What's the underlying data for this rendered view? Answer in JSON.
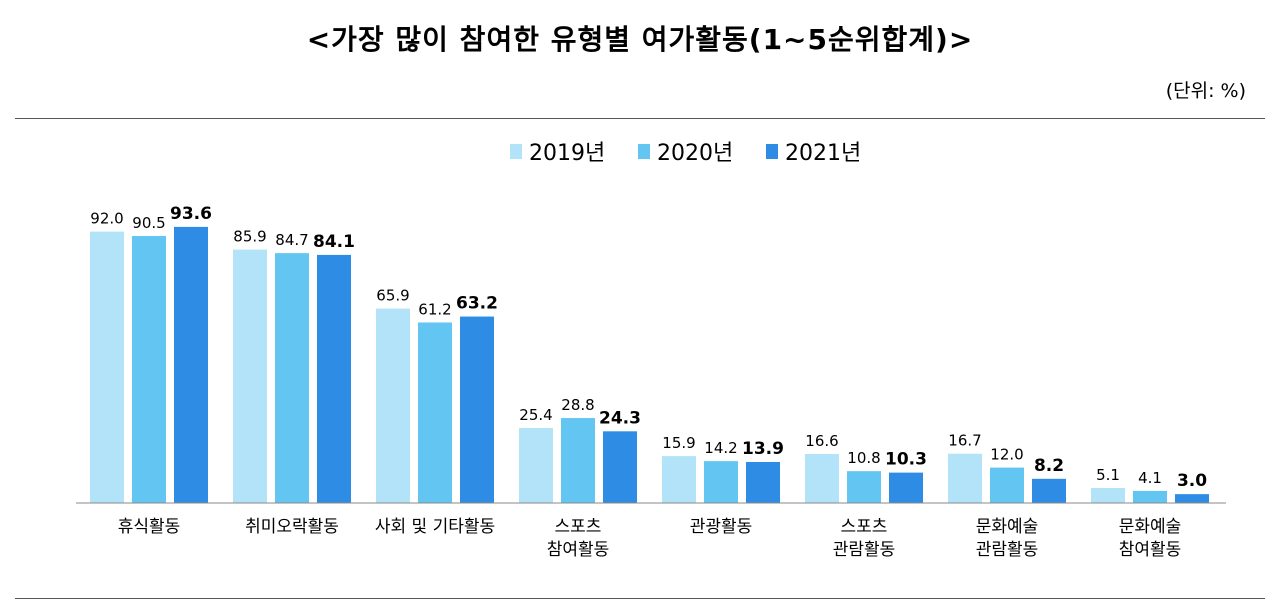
{
  "chart_data": {
    "type": "bar",
    "title": "<가장 많이 참여한 유형별 여가활동(1~5순위합계)>",
    "unit_label": "(단위:  %)",
    "categories": [
      "휴식활동",
      "취미오락활동",
      "사회 및 기타활동",
      "스포츠\n참여활동",
      "관광활동",
      "스포츠\n관람활동",
      "문화예술\n관람활동",
      "문화예술\n참여활동"
    ],
    "series": [
      {
        "name": "2019년",
        "color": "#b3e3f8",
        "values": [
          92.0,
          85.9,
          65.9,
          25.4,
          15.9,
          16.6,
          16.7,
          5.1
        ]
      },
      {
        "name": "2020년",
        "color": "#63c6f2",
        "values": [
          90.5,
          84.7,
          61.2,
          28.8,
          14.2,
          10.8,
          12.0,
          4.1
        ]
      },
      {
        "name": "2021년",
        "color": "#2f8ce4",
        "values": [
          93.6,
          84.1,
          63.2,
          24.3,
          13.9,
          10.3,
          8.2,
          3.0
        ]
      }
    ],
    "bold_series": "2021년",
    "ylim": [
      0,
      100
    ],
    "legend_position": "top-center",
    "grid": false
  }
}
